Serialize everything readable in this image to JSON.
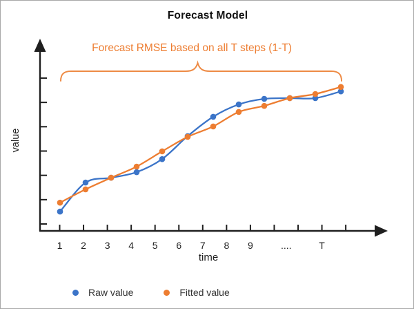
{
  "title": "Forecast Model",
  "annotation": {
    "text": "Forecast RMSE based on all T steps (1-T)"
  },
  "axis": {
    "x_label": "time",
    "y_label": "value"
  },
  "legend": {
    "items": [
      {
        "label": "Raw value",
        "color_key": "raw"
      },
      {
        "label": "Fitted value",
        "color_key": "fitted"
      }
    ]
  },
  "colors": {
    "raw": "#3b74c8",
    "fitted": "#ed7d31",
    "annotation": "#ed7d31",
    "brace": "#ee8b45",
    "axis": "#1f1f1f"
  },
  "chart_data": {
    "type": "line",
    "title": "Forecast Model",
    "xlabel": "time",
    "ylabel": "value",
    "legend_position": "bottom",
    "grid": false,
    "x_axis_note": "time steps 1..T; axis ticks unlabeled after 9 except T",
    "y_axis_note": "y axis has 7 unlabeled ticks; values below are in tick units",
    "ylim": [
      0,
      7
    ],
    "x_tick_labels": [
      {
        "t": 0,
        "label": "1"
      },
      {
        "t": 1,
        "label": "2"
      },
      {
        "t": 2,
        "label": "3"
      },
      {
        "t": 3,
        "label": "4"
      },
      {
        "t": 4,
        "label": "5"
      },
      {
        "t": 5,
        "label": "6"
      },
      {
        "t": 6,
        "label": "7"
      },
      {
        "t": 7,
        "label": "8"
      },
      {
        "t": 8,
        "label": "9"
      },
      {
        "t": 9.5,
        "label": "...."
      },
      {
        "t": 11,
        "label": "T"
      }
    ],
    "x": [
      1,
      2,
      3,
      4,
      5,
      6,
      7,
      8,
      9,
      10,
      11,
      12
    ],
    "series": [
      {
        "name": "Raw value",
        "color_key": "raw",
        "values": [
          0.74,
          1.94,
          2.14,
          2.37,
          2.91,
          3.86,
          4.66,
          5.17,
          5.4,
          5.43,
          5.43,
          5.71
        ]
      },
      {
        "name": "Fitted value",
        "color_key": "fitted",
        "values": [
          1.11,
          1.66,
          2.14,
          2.6,
          3.23,
          3.83,
          4.26,
          4.86,
          5.11,
          5.43,
          5.6,
          5.89
        ]
      }
    ]
  }
}
